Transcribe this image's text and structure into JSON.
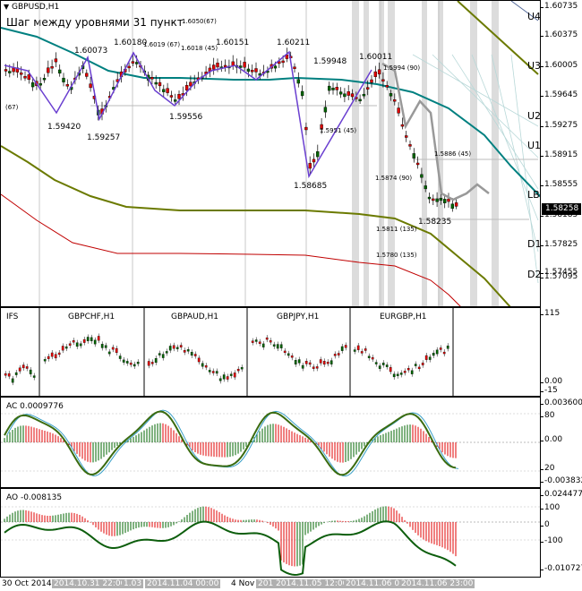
{
  "main": {
    "symbol": "GBPUSD,H1",
    "subtitle": "Шаг между уровнями 31 пункт",
    "current_price": "1.58258",
    "price_ticks": [
      "1.60735",
      "1.60375",
      "1.60005",
      "1.59645",
      "1.59275",
      "1.58915",
      "1.58555",
      "1.58185",
      "1.57825",
      "1.57455",
      "1.57095"
    ],
    "levels": [
      "U4",
      "U3",
      "U2",
      "U1",
      "LB",
      "D1",
      "D2"
    ],
    "swing_labels": [
      "1.60073",
      "1.60180",
      "1.60151",
      "1.60211",
      "1.59948",
      "1.60011",
      "1.59420",
      "1.59257",
      "1.59556",
      "1.58685",
      "1.58235"
    ],
    "small_labels": [
      "1.6050(67)",
      "1.6019 (67)",
      "1.6018 (45)",
      "1.5994 (90)",
      "1.5951 (45)",
      "1.5886 (45)",
      "1.5874 (90)",
      "1.5811 (135)",
      "1.5780 (135)",
      "(67)"
    ]
  },
  "cross": {
    "label": "IFS",
    "pairs": [
      "GBPCHF,H1",
      "GBPAUD,H1",
      "GBPJPY,H1",
      "EURGBP,H1"
    ],
    "ticks": [
      "115",
      "0.00",
      "-15"
    ]
  },
  "ac": {
    "label": "AC 0.0009776",
    "ticks": [
      "0.003600",
      "80",
      "0.00",
      "20",
      "-0.003832"
    ]
  },
  "ao": {
    "label": "AO -0.008135",
    "ticks": [
      "0.024477",
      "100",
      "0",
      "-100",
      "-0.010727"
    ]
  },
  "time_labels": [
    "30 Oct 2014",
    "2014.10.31 22:00",
    "1.03",
    "2014.11.04 00:00",
    "4 Nov",
    "201",
    "2014.11.05 12:00",
    "2014.11.06 07",
    "2014.11.06 23:00"
  ],
  "colors": {
    "up": "#006400",
    "down": "#e00000",
    "ma_teal": "#008080",
    "ma_olive": "#6b7a00",
    "ma_red": "#c00000",
    "zigzag": "#6a3fd0",
    "grey": "#999999"
  }
}
